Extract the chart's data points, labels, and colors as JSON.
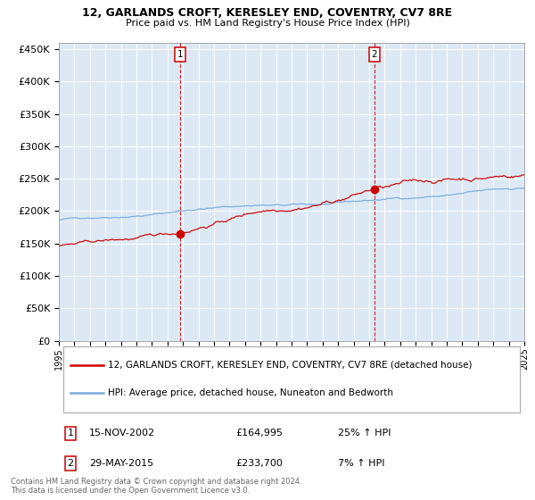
{
  "title": "12, GARLANDS CROFT, KERESLEY END, COVENTRY, CV7 8RE",
  "subtitle": "Price paid vs. HM Land Registry's House Price Index (HPI)",
  "legend_line1": "12, GARLANDS CROFT, KERESLEY END, COVENTRY, CV7 8RE (detached house)",
  "legend_line2": "HPI: Average price, detached house, Nuneaton and Bedworth",
  "purchase1_date": "15-NOV-2002",
  "purchase1_price": 164995,
  "purchase1_hpi": "25% ↑ HPI",
  "purchase2_date": "29-MAY-2015",
  "purchase2_price": 233700,
  "purchase2_hpi": "7% ↑ HPI",
  "footer1": "Contains HM Land Registry data © Crown copyright and database right 2024.",
  "footer2": "This data is licensed under the Open Government Licence v3.0.",
  "ylim": [
    0,
    460000
  ],
  "yticks": [
    0,
    50000,
    100000,
    150000,
    200000,
    250000,
    300000,
    350000,
    400000,
    450000
  ],
  "background_color": "#ffffff",
  "plot_bg_color": "#dce9f5",
  "grid_color": "#ffffff",
  "red_line_color": "#cc0000",
  "blue_line_color": "#7aaadd",
  "start_year": 1995,
  "end_year": 2025
}
